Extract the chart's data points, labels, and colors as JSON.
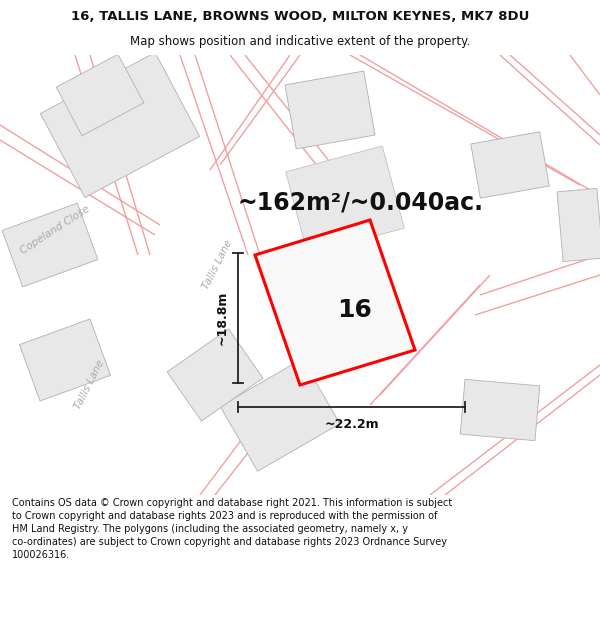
{
  "title_line1": "16, TALLIS LANE, BROWNS WOOD, MILTON KEYNES, MK7 8DU",
  "title_line2": "Map shows position and indicative extent of the property.",
  "area_text": "~162m²/~0.040ac.",
  "property_number": "16",
  "dim_height": "~18.8m",
  "dim_width": "~22.2m",
  "footer_text": "Contains OS data © Crown copyright and database right 2021. This information is subject to Crown copyright and database rights 2023 and is reproduced with the permission of HM Land Registry. The polygons (including the associated geometry, namely x, y co-ordinates) are subject to Crown copyright and database rights 2023 Ordnance Survey 100026316.",
  "bg_color": "#ffffff",
  "map_bg": "#ffffff",
  "building_fill": "#e8e8e8",
  "building_edge": "#b0b0b0",
  "road_color": "#f0a0a0",
  "road_lw": 0.8,
  "highlight_fill": "#f0f0f0",
  "highlight_edge": "#ff0000",
  "title_fontsize": 9.5,
  "subtitle_fontsize": 8.5,
  "area_fontsize": 17,
  "number_fontsize": 18,
  "dim_fontsize": 9,
  "footer_fontsize": 7.0,
  "label_color": "#aaaaaa",
  "dim_color": "#222222"
}
